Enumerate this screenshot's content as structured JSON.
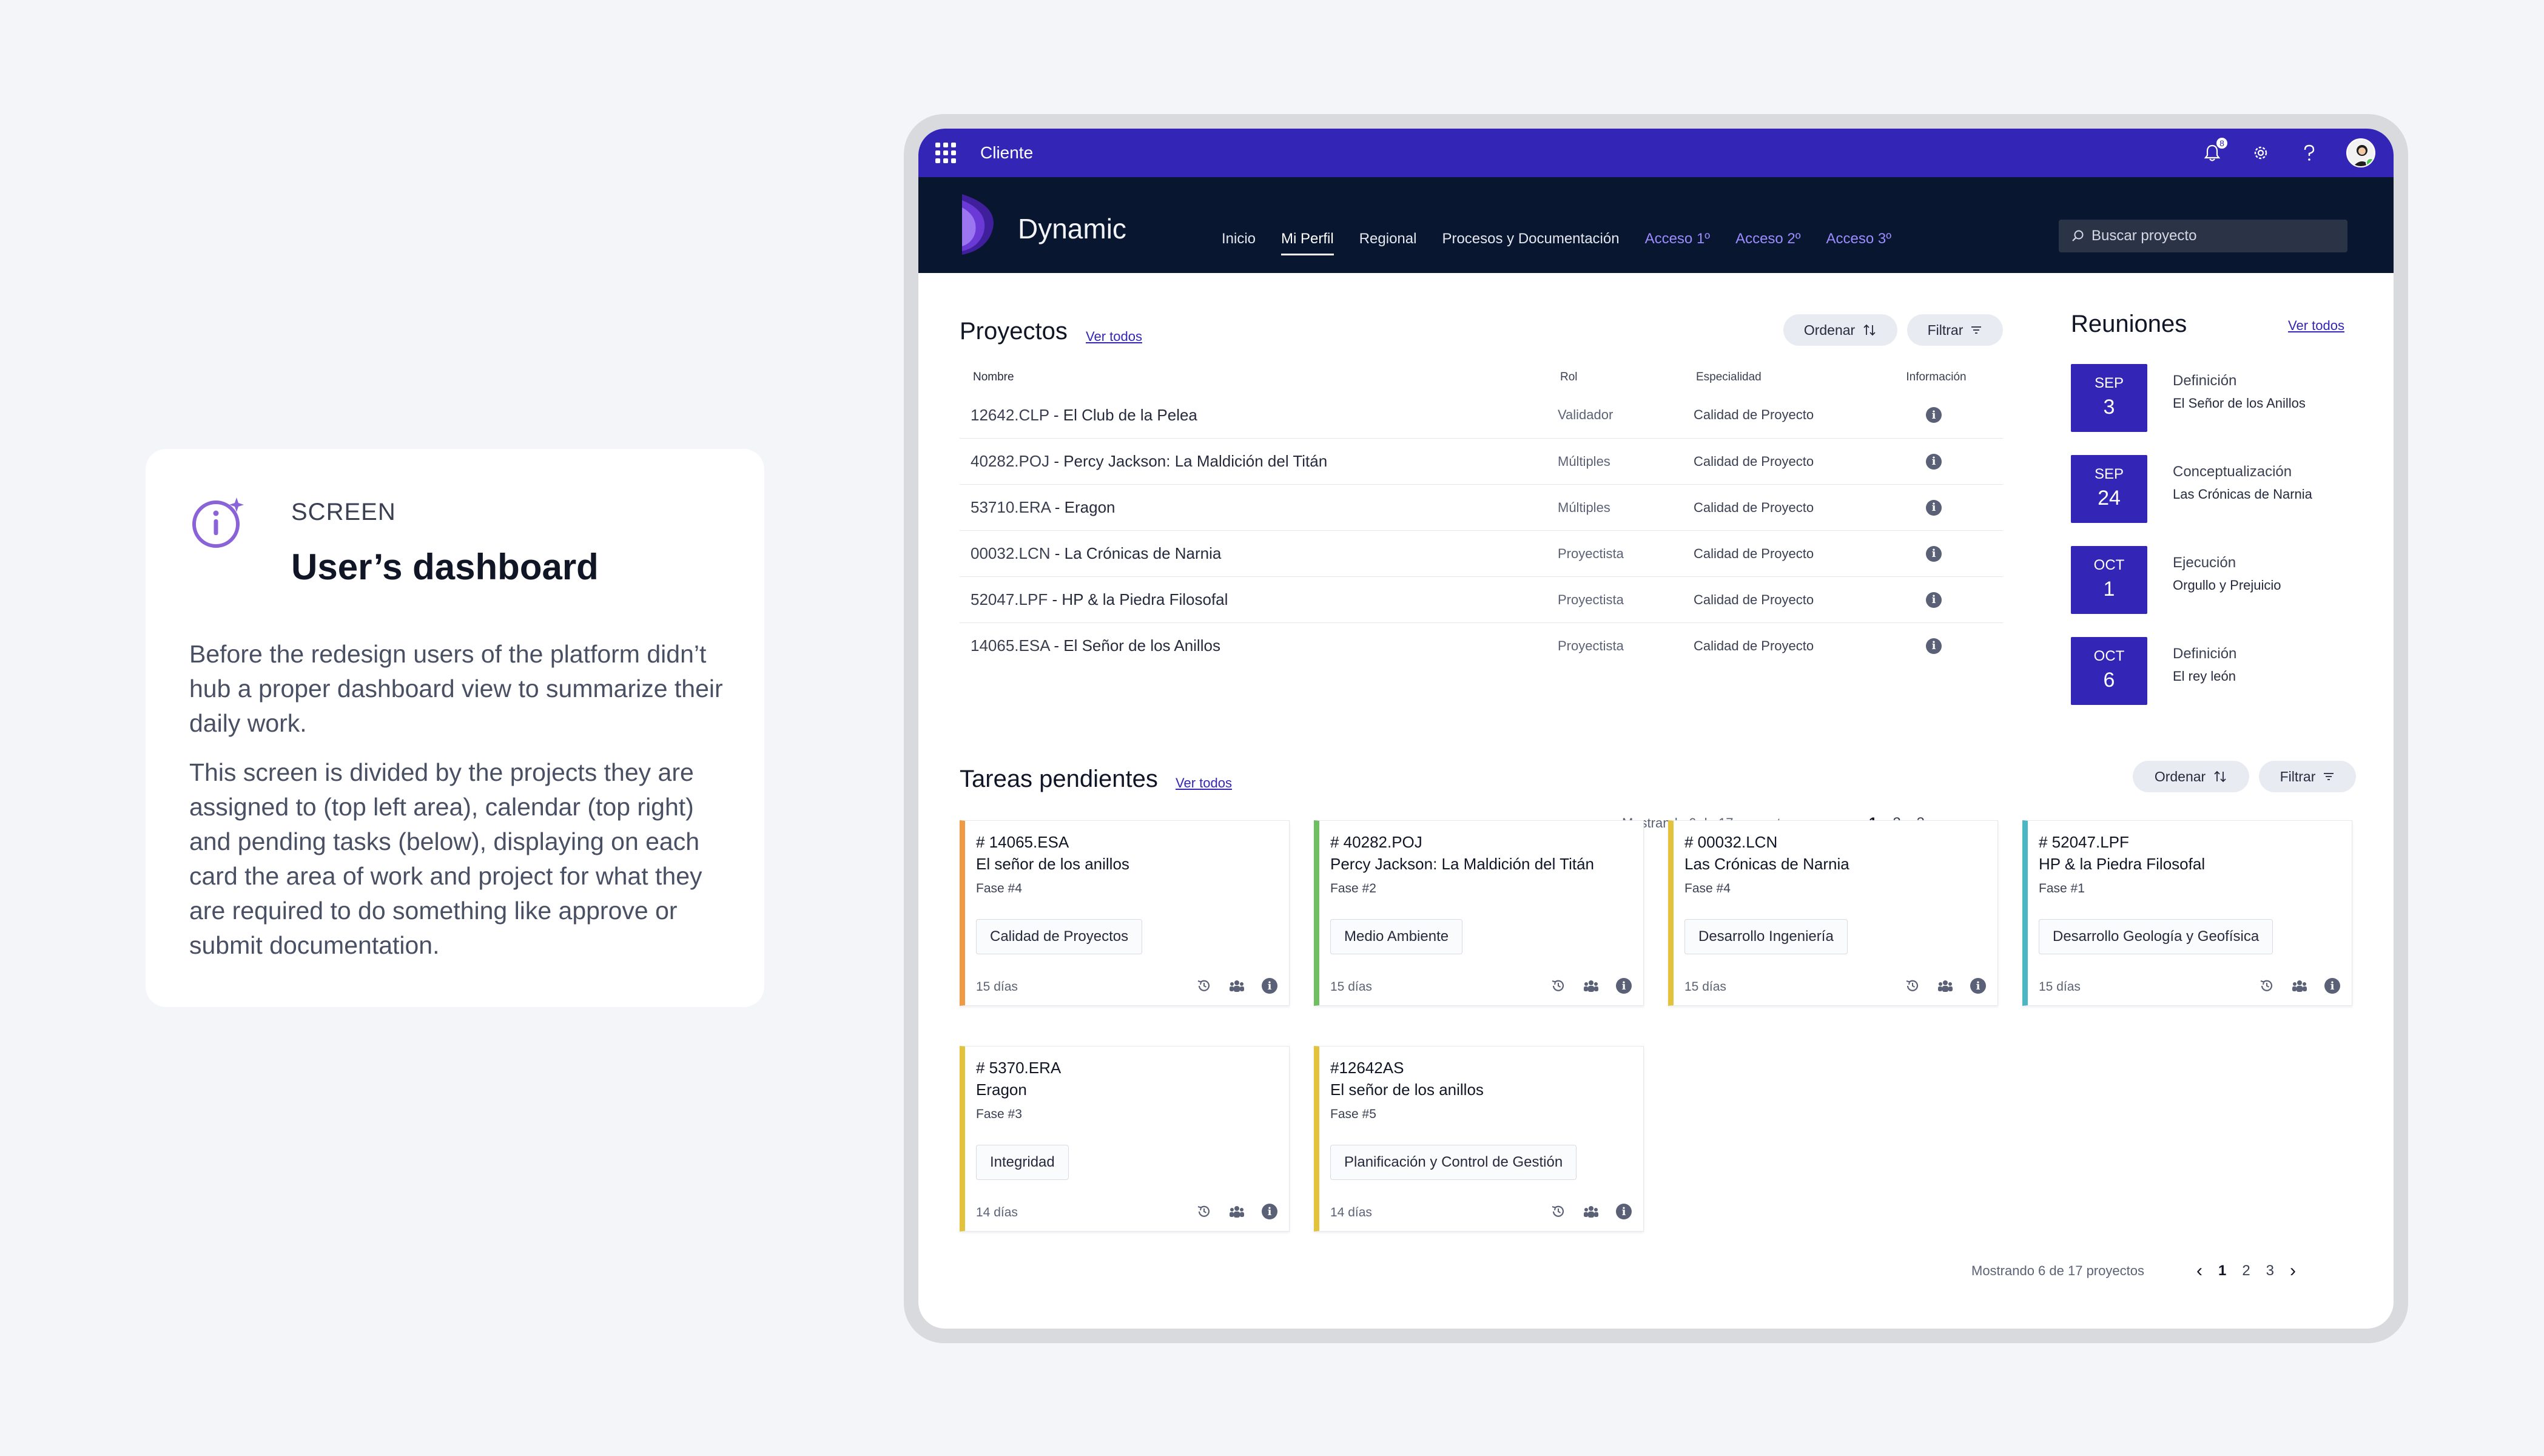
{
  "info": {
    "kicker": "SCREEN",
    "title": "User’s dashboard",
    "paragraph1": "Before the redesign users of the platform didn’t hub a proper dashboard view to summarize their daily work.",
    "paragraph2": "This screen is divided by the projects they are assigned to (top left area), calendar (top right) and pending tasks (below), displaying on each card the area of work and project for what they are required to do something like approve or submit documentation."
  },
  "topbar": {
    "app_name": "Cliente",
    "notification_count": "8"
  },
  "header": {
    "brand": "Dynamic",
    "nav": [
      {
        "label": "Inicio"
      },
      {
        "label": "Mi Perfil"
      },
      {
        "label": "Regional"
      },
      {
        "label": "Procesos y Documentación"
      },
      {
        "label": "Acceso 1º"
      },
      {
        "label": "Acceso 2º"
      },
      {
        "label": "Acceso 3º"
      }
    ],
    "search_placeholder": "Buscar proyecto"
  },
  "projects": {
    "title": "Proyectos",
    "see_all": "Ver todos",
    "sort_label": "Ordenar",
    "filter_label": "Filtrar",
    "columns": {
      "name": "Nombre",
      "role": "Rol",
      "specialty": "Especialidad",
      "info": "Información"
    },
    "rows": [
      {
        "code": "12642.CLP",
        "name": "El Club de la Pelea",
        "role": "Validador",
        "specialty": "Calidad de Proyecto"
      },
      {
        "code": "40282.POJ",
        "name": "Percy Jackson: La Maldición del Titán",
        "role": "Múltiples",
        "specialty": "Calidad de Proyecto"
      },
      {
        "code": "53710.ERA",
        "name": "Eragon",
        "role": "Múltiples",
        "specialty": "Calidad de Proyecto"
      },
      {
        "code": "00032.LCN",
        "name": "La Crónicas de Narnia",
        "role": "Proyectista",
        "specialty": "Calidad de Proyecto"
      },
      {
        "code": "52047.LPF",
        "name": "HP & la Piedra Filosofal",
        "role": "Proyectista",
        "specialty": "Calidad de Proyecto"
      },
      {
        "code": "14065.ESA",
        "name": "El Señor de los Anillos",
        "role": "Proyectista",
        "specialty": "Calidad de Proyecto"
      }
    ],
    "pager": {
      "count_text": "Mostrando 6 de 17 proyectos",
      "pages": [
        "1",
        "2",
        "3"
      ],
      "current": "1"
    }
  },
  "meetings": {
    "title": "Reuniones",
    "see_all": "Ver todos",
    "items": [
      {
        "month": "SEP",
        "day": "3",
        "title": "Definición",
        "project": "El Señor de los Anillos"
      },
      {
        "month": "SEP",
        "day": "24",
        "title": "Conceptualización",
        "project": "Las Crónicas de Narnia"
      },
      {
        "month": "OCT",
        "day": "1",
        "title": "Ejecución",
        "project": "Orgullo y Prejuicio"
      },
      {
        "month": "OCT",
        "day": "6",
        "title": "Definición",
        "project": "El rey león"
      }
    ]
  },
  "tasks": {
    "title": "Tareas pendientes",
    "see_all": "Ver todos",
    "sort_label": "Ordenar",
    "filter_label": "Filtrar",
    "items": [
      {
        "code": "# 14065.ESA",
        "name": "El señor de los anillos",
        "phase": "Fase #4",
        "tag": "Calidad de Proyectos",
        "days": "15 días",
        "color": "#ef9a45"
      },
      {
        "code": "# 40282.POJ",
        "name": "Percy Jackson: La Maldición del Titán",
        "phase": "Fase #2",
        "tag": "Medio Ambiente",
        "days": "15 días",
        "color": "#6fbf62"
      },
      {
        "code": "# 00032.LCN",
        "name": "Las Crónicas de Narnia",
        "phase": "Fase #4",
        "tag": "Desarrollo Ingeniería",
        "days": "15 días",
        "color": "#e3c33c"
      },
      {
        "code": "# 52047.LPF",
        "name": "HP & la Piedra Filosofal",
        "phase": "Fase #1",
        "tag": "Desarrollo Geología y Geofísica",
        "days": "15 días",
        "color": "#4cb6c2"
      },
      {
        "code": "# 5370.ERA",
        "name": "Eragon",
        "phase": "Fase #3",
        "tag": "Integridad",
        "days": "14 días",
        "color": "#e3c33c"
      },
      {
        "code": "#12642AS",
        "name": "El señor de los anillos",
        "phase": "Fase #5",
        "tag": "Planificación y Control de Gestión",
        "days": "14 días",
        "color": "#e3c33c"
      }
    ],
    "pager": {
      "count_text": "Mostrando 6 de 17 proyectos",
      "pages": [
        "1",
        "2",
        "3"
      ],
      "current": "1"
    }
  },
  "colors": {
    "primary": "#3325b5",
    "header_bg": "#08162f",
    "accent_link": "#9c8cff"
  }
}
